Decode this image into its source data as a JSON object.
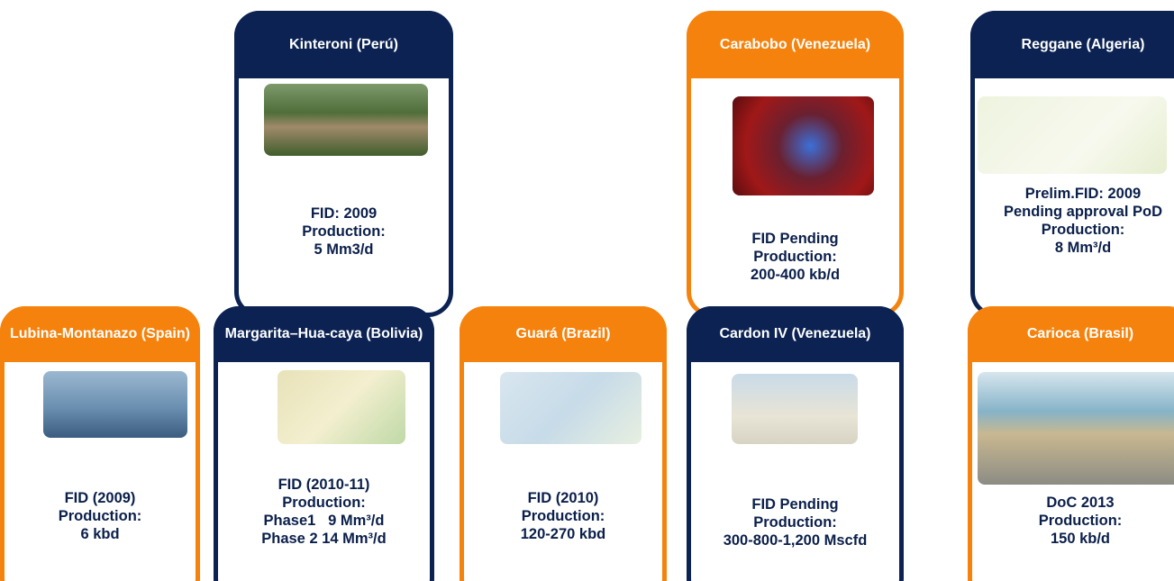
{
  "cards": [
    {
      "title": "Kinteroni (Perú)",
      "lines": [
        "FID: 2009",
        "Production:",
        "5 Mm3/d"
      ]
    },
    {
      "title": "Carabobo (Venezuela)",
      "lines": [
        "FID Pending",
        "Production:",
        "200-400 kb/d"
      ]
    },
    {
      "title": "Reggane (Algeria)",
      "lines": [
        "Prelim.FID: 2009",
        "Pending approval PoD",
        "Production:",
        "8 Mm³/d"
      ]
    },
    {
      "title": "Lubina-Montanazo (Spain)",
      "lines": [
        "FID (2009)",
        "Production:",
        "6 kbd"
      ]
    },
    {
      "title": "Margarita–Hua-caya (Bolivia)",
      "lines": [
        "FID (2010-11)",
        "Production:",
        "Phase1   9 Mm³/d",
        "Phase 2 14 Mm³/d"
      ]
    },
    {
      "title": "Guará (Brazil)",
      "lines": [
        "FID (2010)",
        "Production:",
        "120-270 kbd"
      ]
    },
    {
      "title": "Cardon IV (Venezuela)",
      "lines": [
        "FID Pending",
        "Production:",
        "300-800-1,200 Mscfd"
      ]
    },
    {
      "title": "Carioca (Brasil)",
      "lines": [
        "DoC 2013",
        "Production:",
        "150 kb/d"
      ]
    }
  ]
}
